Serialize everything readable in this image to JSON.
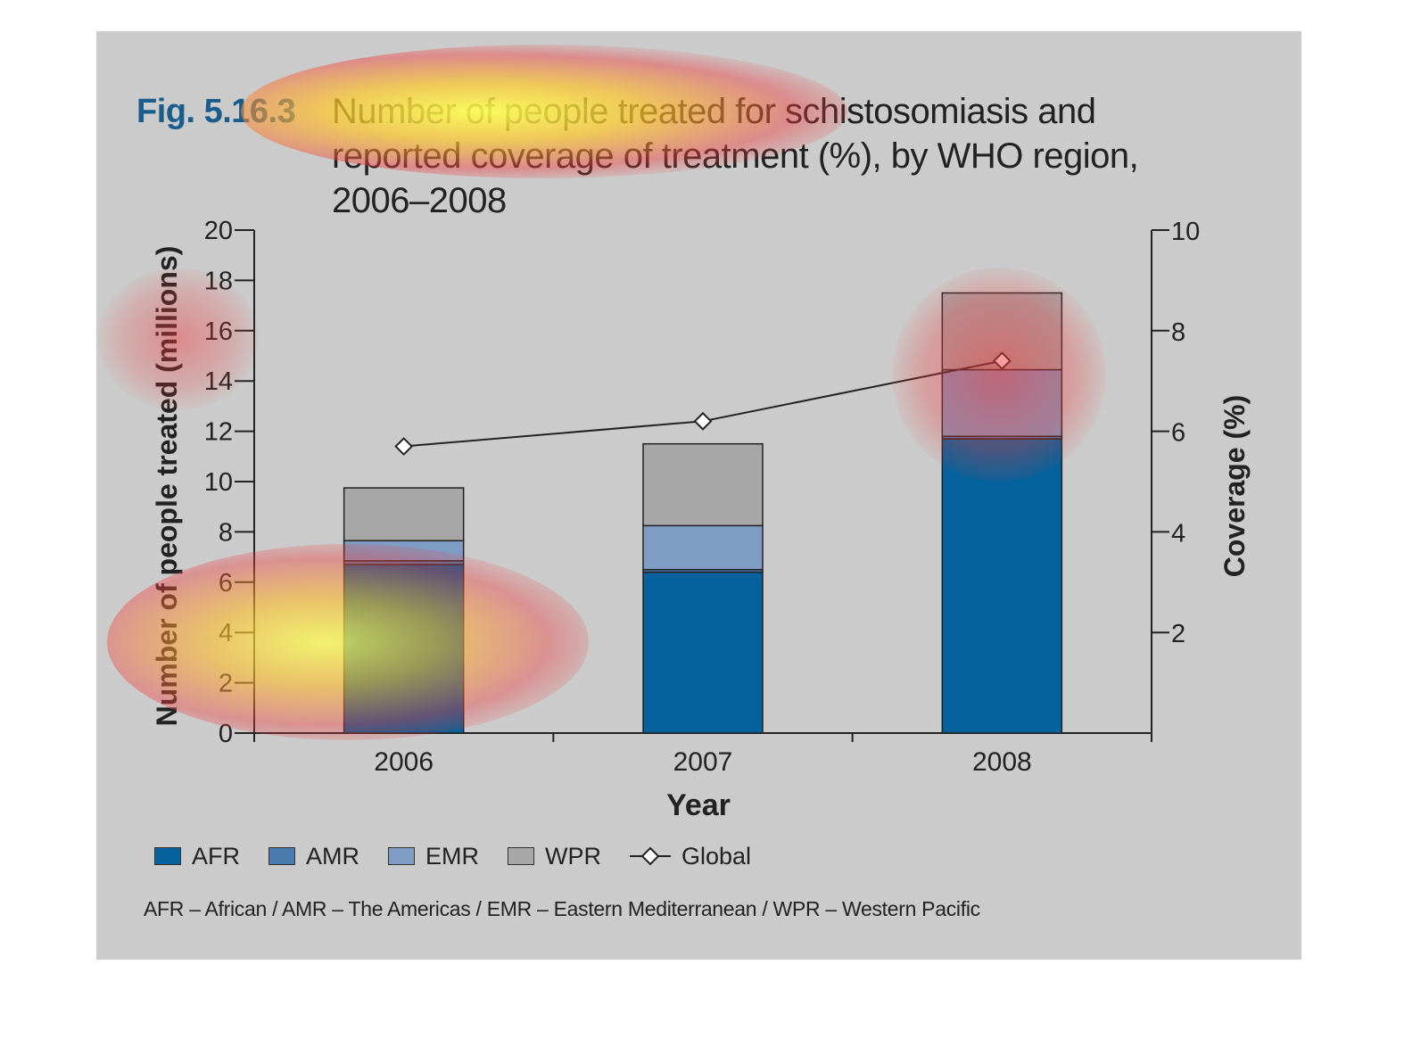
{
  "figure": {
    "label": "Fig. 5.16.3",
    "title": "Number of people treated for schistosomiasis and reported coverage of treatment (%), by WHO region, 2006–2008",
    "footnote": "AFR – African / AMR – The Americas / EMR – Eastern Mediterranean / WPR – Western Pacific"
  },
  "colors": {
    "panel": "#cbcbcb",
    "AFR": "#05629c",
    "AMR": "#4a7aae",
    "EMR": "#7f9cc4",
    "WPR": "#a7a7a7",
    "line": "#222222"
  },
  "chart_data": {
    "type": "bar",
    "stacked": true,
    "categories": [
      "2006",
      "2007",
      "2008"
    ],
    "xlabel": "Year",
    "ylabel": "Number of people treated (millions)",
    "ylabel_right": "Coverage (%)",
    "ylim": [
      0,
      20
    ],
    "yticks": [
      0,
      2,
      4,
      6,
      8,
      10,
      12,
      14,
      16,
      18,
      20
    ],
    "ylim_right": [
      0,
      10
    ],
    "yticks_right": [
      2,
      4,
      6,
      8,
      10
    ],
    "series": [
      {
        "name": "AFR",
        "values": [
          6.7,
          6.4,
          11.7
        ]
      },
      {
        "name": "AMR",
        "values": [
          0.15,
          0.1,
          0.1
        ]
      },
      {
        "name": "EMR",
        "values": [
          0.8,
          1.75,
          2.65
        ]
      },
      {
        "name": "WPR",
        "values": [
          2.1,
          3.25,
          3.05
        ]
      }
    ],
    "line_series": {
      "name": "Global",
      "axis": "right",
      "values": [
        5.7,
        6.2,
        7.4
      ]
    },
    "legend": [
      "AFR",
      "AMR",
      "EMR",
      "WPR",
      "Global"
    ],
    "legend_position": "bottom",
    "grid": false
  }
}
